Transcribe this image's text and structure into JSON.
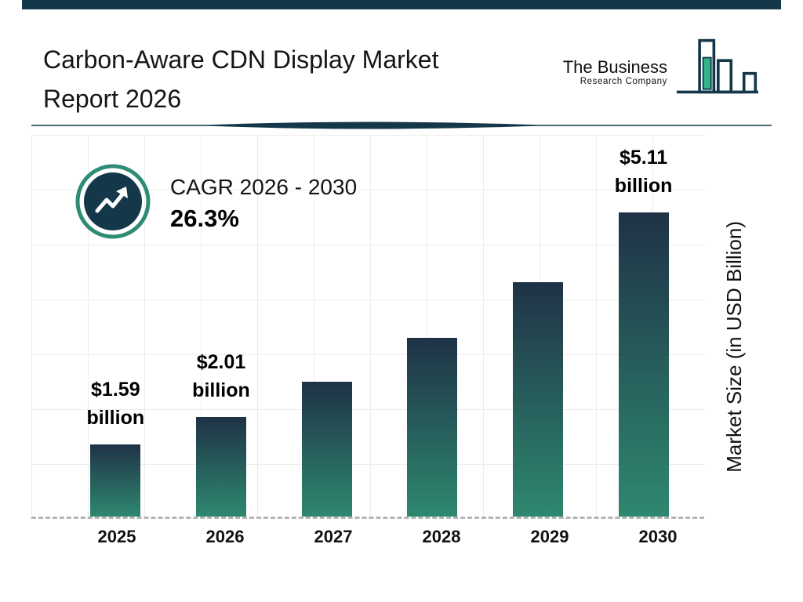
{
  "page": {
    "title_line1": "Carbon-Aware CDN Display Market",
    "title_line2": "Report 2026"
  },
  "logo": {
    "line1": "The Business",
    "line2": "Research Company"
  },
  "cagr": {
    "label": "CAGR 2026 - 2030",
    "value": "26.3%"
  },
  "colors": {
    "brand_dark_teal": "#14384a",
    "brand_green": "#35b586",
    "ring_teal": "#2e8b74",
    "bar_gradient_top": "#1f3246",
    "bar_gradient_bottom": "#2e8870",
    "grid_line": "#ececec",
    "dashed_baseline": "#b5b5b5"
  },
  "chart_data": {
    "type": "bar",
    "title": "Carbon-Aware CDN Display Market Report 2026",
    "categories": [
      "2025",
      "2026",
      "2027",
      "2028",
      "2029",
      "2030"
    ],
    "values": [
      1.59,
      2.01,
      2.54,
      3.21,
      4.05,
      5.11
    ],
    "value_labels": [
      {
        "index": 0,
        "line1": "$1.59",
        "line2": "billion"
      },
      {
        "index": 1,
        "line1": "$2.01",
        "line2": "billion"
      },
      {
        "index": 5,
        "line1": "$5.11",
        "line2": "billion"
      }
    ],
    "xlabel": "",
    "ylabel": "Market Size (in USD Billion)",
    "ylim": [
      0,
      5.5
    ],
    "grid": true,
    "legend": "none",
    "annotations": [
      "CAGR 2026 - 2030",
      "26.3%"
    ],
    "bar_gradient": [
      "#1f3246",
      "#2e8870"
    ]
  }
}
